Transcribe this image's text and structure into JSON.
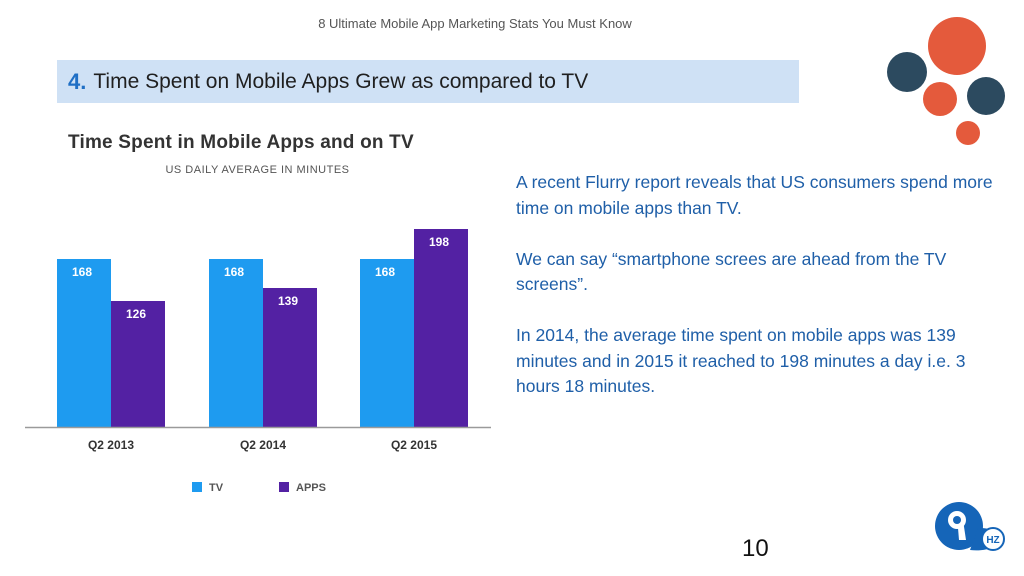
{
  "header": {
    "deck_title": "8 Ultimate Mobile App Marketing Stats You Must Know"
  },
  "banner": {
    "number": "4.",
    "text": "Time Spent on Mobile Apps Grew as compared to TV"
  },
  "body": {
    "paragraphs": [
      "A recent Flurry report reveals that US consumers spend more time on mobile apps than TV.",
      "We can say “smartphone screes are ahead from the TV screens”.",
      "In 2014, the average time spent on mobile apps was 139 minutes and in 2015 it reached to 198 minutes a day i.e. 3 hours 18 minutes."
    ]
  },
  "page_number": "10",
  "colors": {
    "tv": "#1e9bf0",
    "apps": "#5321a3",
    "banner": "#cfe1f5",
    "body_text": "#1f5fa8",
    "circle_orange": "#e45a3c",
    "circle_navy": "#2c4a5f"
  },
  "logo": {
    "letters": "HZ",
    "icon": "9hz-logo-icon"
  },
  "chart_data": {
    "type": "bar",
    "title": "Time Spent in Mobile Apps and on TV",
    "subtitle": "US DAILY AVERAGE IN MINUTES",
    "categories": [
      "Q2 2013",
      "Q2 2014",
      "Q2 2015"
    ],
    "series": [
      {
        "name": "TV",
        "values": [
          168,
          168,
          168
        ]
      },
      {
        "name": "APPS",
        "values": [
          126,
          139,
          198
        ]
      }
    ],
    "ylim": [
      0,
      200
    ],
    "grid": false,
    "legend": "bottom-center"
  }
}
